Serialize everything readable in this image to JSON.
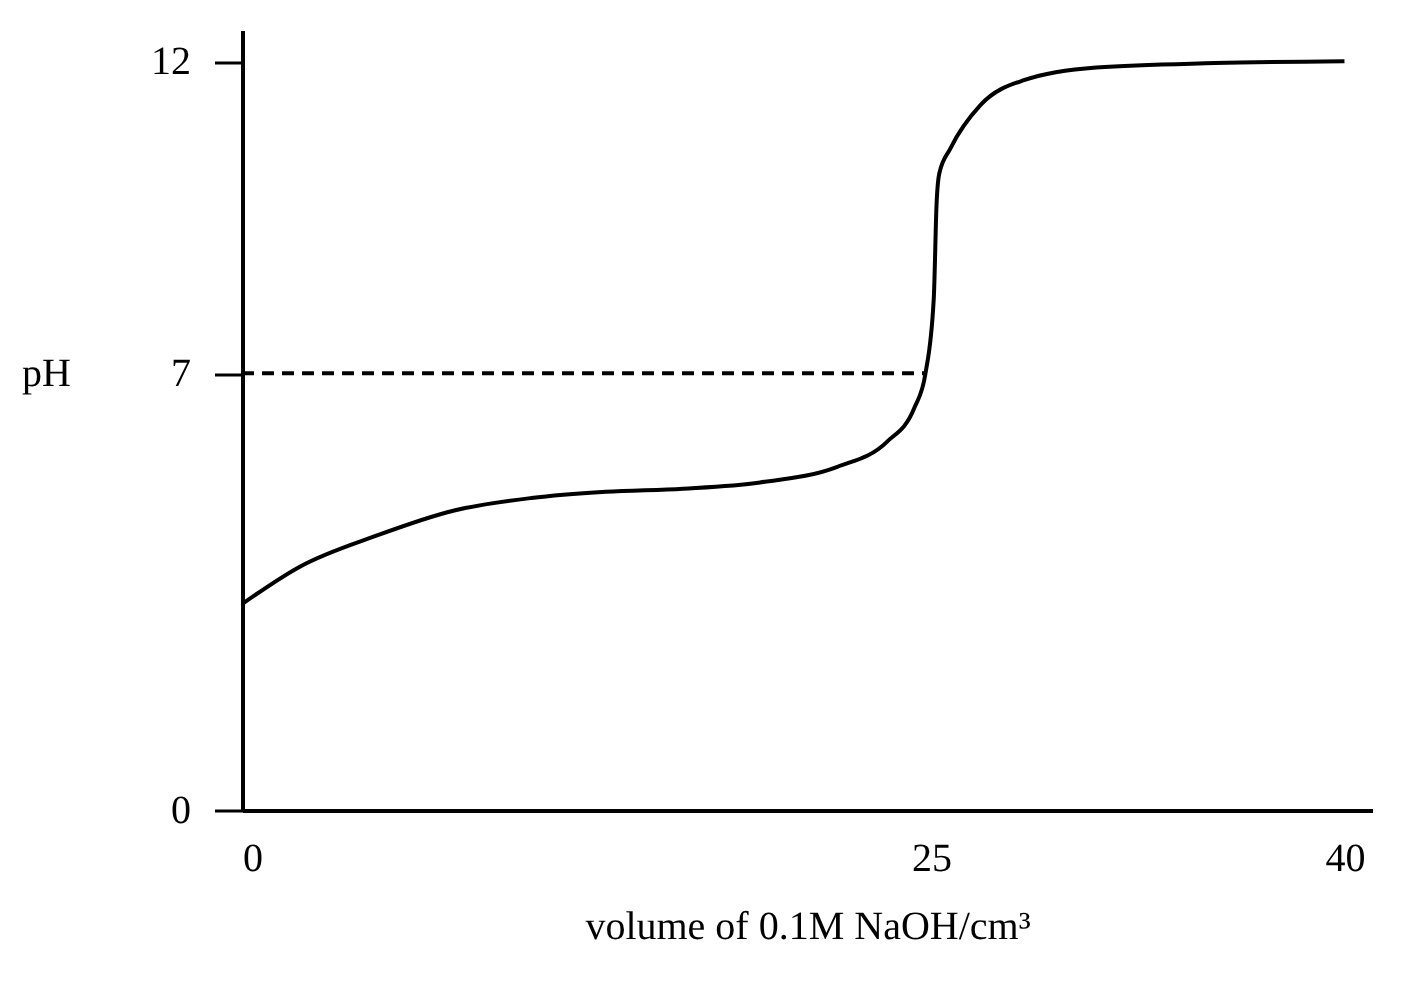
{
  "chart_data": {
    "type": "line",
    "xlabel": "volume of 0.1M NaOH/cm³",
    "ylabel": "pH",
    "xlim": [
      0,
      41
    ],
    "ylim": [
      0,
      12.5
    ],
    "xticks": [
      0,
      25,
      40
    ],
    "yticks": [
      0,
      7,
      12
    ],
    "grid": false,
    "marker": "none",
    "series": [
      {
        "color": "#000000",
        "line_style": "solid",
        "x": [
          0,
          2.1,
          4.9,
          7.7,
          10.5,
          13.2,
          16,
          18.8,
          21.6,
          23.4,
          24.4,
          24.8,
          25.1,
          25.2,
          25.3,
          25.7,
          26.8,
          28.4,
          31,
          35.3,
          40
        ],
        "values": [
          3.3,
          3.9,
          4.4,
          4.8,
          5,
          5.1,
          5.15,
          5.25,
          5.5,
          5.9,
          6.45,
          7,
          8.2,
          9.7,
          10.2,
          10.6,
          11.3,
          11.7,
          11.9,
          11.97,
          12
        ]
      },
      {
        "color": "#000000",
        "line_style": "dashed",
        "x": [
          0,
          24.8
        ],
        "values": [
          7,
          7
        ]
      }
    ]
  }
}
